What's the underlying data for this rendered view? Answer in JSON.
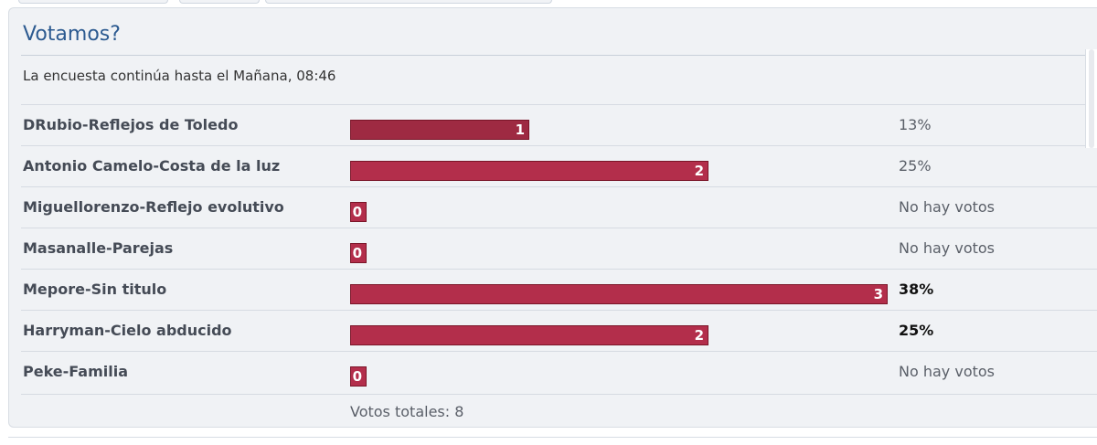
{
  "poll": {
    "title": "Votamos?",
    "closing_text": "La encuesta continúa hasta el Mañana, 08:46",
    "responses": [
      {
        "name": "DRubio-Reflejos de Toledo",
        "votes": "1",
        "percent": "13%",
        "share": 0.333
      },
      {
        "name": "Antonio Camelo-Costa de la luz",
        "votes": "2",
        "percent": "25%",
        "share": 0.667
      },
      {
        "name": "Miguellorenzo-Reflejo evolutivo",
        "votes": "0",
        "percent": "No hay votos",
        "share": 0
      },
      {
        "name": "Masanalle-Parejas",
        "votes": "0",
        "percent": "No hay votos",
        "share": 0
      },
      {
        "name": "Mepore-Sin titulo",
        "votes": "3",
        "percent": "38%",
        "share": 1
      },
      {
        "name": "Harryman-Cielo abducido",
        "votes": "2",
        "percent": "25%",
        "share": 0.667
      },
      {
        "name": "Peke-Familia",
        "votes": "0",
        "percent": "No hay votos",
        "share": 0
      }
    ],
    "total_votes_text": "Votos totales: 8"
  },
  "colors": {
    "bar_fill": "#b32e4b",
    "bar_fill_selected": "#9e2a42",
    "title": "#2c5a90"
  }
}
